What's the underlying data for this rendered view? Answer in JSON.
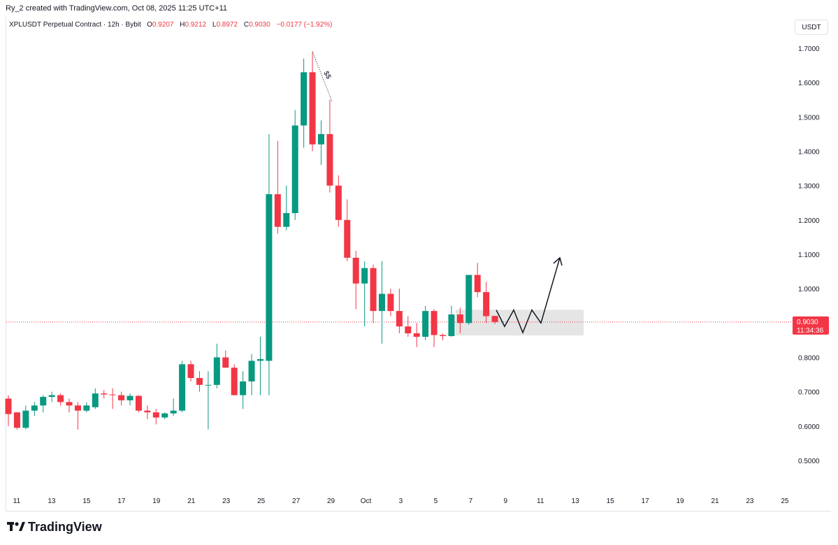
{
  "credit": "Ry_2 created with TradingView.com, Oct 08, 2025 11:25 UTC+11",
  "legend": {
    "symbol": "XPLUSDT Perpetual Contract · 12h · Bybit",
    "o_label": "O",
    "o_value": "0.9207",
    "h_label": "H",
    "h_value": "0.9212",
    "l_label": "L",
    "l_value": "0.8972",
    "c_label": "C",
    "c_value": "0.9030",
    "change": "−0.0177 (−1.92%)"
  },
  "currency_button": "USDT",
  "brand": "TradingView",
  "annotation_label": "$$",
  "colors": {
    "up": "#089981",
    "down": "#f23645",
    "price_line": "#f23645",
    "zone": "#e5e5e5"
  },
  "chart_data": {
    "type": "candlestick",
    "interval": "12h",
    "y_ticks": [
      "1.7000",
      "1.6000",
      "1.5000",
      "1.4000",
      "1.3000",
      "1.2000",
      "1.1000",
      "1.0000",
      "0.8000",
      "0.7000",
      "0.6000",
      "0.5000"
    ],
    "x_ticks": [
      "11",
      "13",
      "15",
      "17",
      "19",
      "21",
      "23",
      "25",
      "27",
      "29",
      "Oct",
      "3",
      "5",
      "7",
      "9",
      "11",
      "13",
      "15",
      "17",
      "19",
      "21",
      "23",
      "25"
    ],
    "last_price": "0.9030",
    "countdown": "11:34:36",
    "candles": [
      {
        "o": 0.68,
        "h": 0.69,
        "l": 0.6,
        "c": 0.635
      },
      {
        "o": 0.64,
        "h": 0.64,
        "l": 0.59,
        "c": 0.595
      },
      {
        "o": 0.595,
        "h": 0.66,
        "l": 0.59,
        "c": 0.645
      },
      {
        "o": 0.645,
        "h": 0.67,
        "l": 0.63,
        "c": 0.66
      },
      {
        "o": 0.66,
        "h": 0.69,
        "l": 0.64,
        "c": 0.685
      },
      {
        "o": 0.685,
        "h": 0.7,
        "l": 0.67,
        "c": 0.69
      },
      {
        "o": 0.69,
        "h": 0.695,
        "l": 0.66,
        "c": 0.67
      },
      {
        "o": 0.67,
        "h": 0.68,
        "l": 0.64,
        "c": 0.66
      },
      {
        "o": 0.66,
        "h": 0.67,
        "l": 0.59,
        "c": 0.645
      },
      {
        "o": 0.645,
        "h": 0.67,
        "l": 0.64,
        "c": 0.66
      },
      {
        "o": 0.655,
        "h": 0.71,
        "l": 0.65,
        "c": 0.695
      },
      {
        "o": 0.695,
        "h": 0.705,
        "l": 0.68,
        "c": 0.692
      },
      {
        "o": 0.692,
        "h": 0.71,
        "l": 0.65,
        "c": 0.69
      },
      {
        "o": 0.69,
        "h": 0.7,
        "l": 0.66,
        "c": 0.675
      },
      {
        "o": 0.675,
        "h": 0.695,
        "l": 0.66,
        "c": 0.688
      },
      {
        "o": 0.688,
        "h": 0.69,
        "l": 0.64,
        "c": 0.645
      },
      {
        "o": 0.645,
        "h": 0.66,
        "l": 0.62,
        "c": 0.64
      },
      {
        "o": 0.64,
        "h": 0.65,
        "l": 0.605,
        "c": 0.625
      },
      {
        "o": 0.625,
        "h": 0.64,
        "l": 0.62,
        "c": 0.637
      },
      {
        "o": 0.637,
        "h": 0.68,
        "l": 0.63,
        "c": 0.645
      },
      {
        "o": 0.645,
        "h": 0.79,
        "l": 0.64,
        "c": 0.78
      },
      {
        "o": 0.78,
        "h": 0.79,
        "l": 0.73,
        "c": 0.74
      },
      {
        "o": 0.74,
        "h": 0.76,
        "l": 0.7,
        "c": 0.72
      },
      {
        "o": 0.72,
        "h": 0.76,
        "l": 0.59,
        "c": 0.72
      },
      {
        "o": 0.72,
        "h": 0.84,
        "l": 0.71,
        "c": 0.8
      },
      {
        "o": 0.8,
        "h": 0.82,
        "l": 0.77,
        "c": 0.77
      },
      {
        "o": 0.77,
        "h": 0.78,
        "l": 0.69,
        "c": 0.69
      },
      {
        "o": 0.69,
        "h": 0.76,
        "l": 0.65,
        "c": 0.73
      },
      {
        "o": 0.73,
        "h": 0.81,
        "l": 0.69,
        "c": 0.79
      },
      {
        "o": 0.79,
        "h": 0.86,
        "l": 0.69,
        "c": 0.795
      },
      {
        "o": 0.79,
        "h": 1.45,
        "l": 0.69,
        "c": 1.275
      },
      {
        "o": 1.275,
        "h": 1.43,
        "l": 1.16,
        "c": 1.18
      },
      {
        "o": 1.18,
        "h": 1.3,
        "l": 1.17,
        "c": 1.22
      },
      {
        "o": 1.22,
        "h": 1.52,
        "l": 1.2,
        "c": 1.475
      },
      {
        "o": 1.475,
        "h": 1.67,
        "l": 1.41,
        "c": 1.63
      },
      {
        "o": 1.63,
        "h": 1.69,
        "l": 1.4,
        "c": 1.42
      },
      {
        "o": 1.42,
        "h": 1.49,
        "l": 1.36,
        "c": 1.45
      },
      {
        "o": 1.45,
        "h": 1.55,
        "l": 1.28,
        "c": 1.3
      },
      {
        "o": 1.3,
        "h": 1.33,
        "l": 1.18,
        "c": 1.2
      },
      {
        "o": 1.2,
        "h": 1.26,
        "l": 1.08,
        "c": 1.09
      },
      {
        "o": 1.09,
        "h": 1.11,
        "l": 0.94,
        "c": 1.015
      },
      {
        "o": 1.015,
        "h": 1.08,
        "l": 0.89,
        "c": 1.06
      },
      {
        "o": 1.06,
        "h": 1.07,
        "l": 0.9,
        "c": 0.935
      },
      {
        "o": 0.935,
        "h": 1.08,
        "l": 0.84,
        "c": 0.985
      },
      {
        "o": 0.985,
        "h": 1.0,
        "l": 0.92,
        "c": 0.935
      },
      {
        "o": 0.935,
        "h": 1.0,
        "l": 0.87,
        "c": 0.89
      },
      {
        "o": 0.89,
        "h": 0.92,
        "l": 0.86,
        "c": 0.87
      },
      {
        "o": 0.87,
        "h": 0.9,
        "l": 0.83,
        "c": 0.86
      },
      {
        "o": 0.86,
        "h": 0.95,
        "l": 0.85,
        "c": 0.935
      },
      {
        "o": 0.935,
        "h": 0.94,
        "l": 0.83,
        "c": 0.865
      },
      {
        "o": 0.865,
        "h": 0.87,
        "l": 0.85,
        "c": 0.862
      },
      {
        "o": 0.862,
        "h": 0.95,
        "l": 0.86,
        "c": 0.925
      },
      {
        "o": 0.925,
        "h": 0.945,
        "l": 0.87,
        "c": 0.9
      },
      {
        "o": 0.9,
        "h": 1.04,
        "l": 0.895,
        "c": 1.04
      },
      {
        "o": 1.04,
        "h": 1.075,
        "l": 0.975,
        "c": 0.99
      },
      {
        "o": 0.99,
        "h": 1.02,
        "l": 0.9,
        "c": 0.92
      },
      {
        "o": 0.9207,
        "h": 0.9212,
        "l": 0.8972,
        "c": 0.903
      }
    ],
    "zone": {
      "top": 0.9385,
      "bottom": 0.8638
    },
    "projection_path": [
      [
        0.938
      ],
      [
        0.89
      ],
      [
        0.938
      ],
      [
        0.872
      ],
      [
        0.938
      ],
      [
        0.9
      ],
      [
        1.09
      ]
    ],
    "projection_label": "arrow"
  }
}
